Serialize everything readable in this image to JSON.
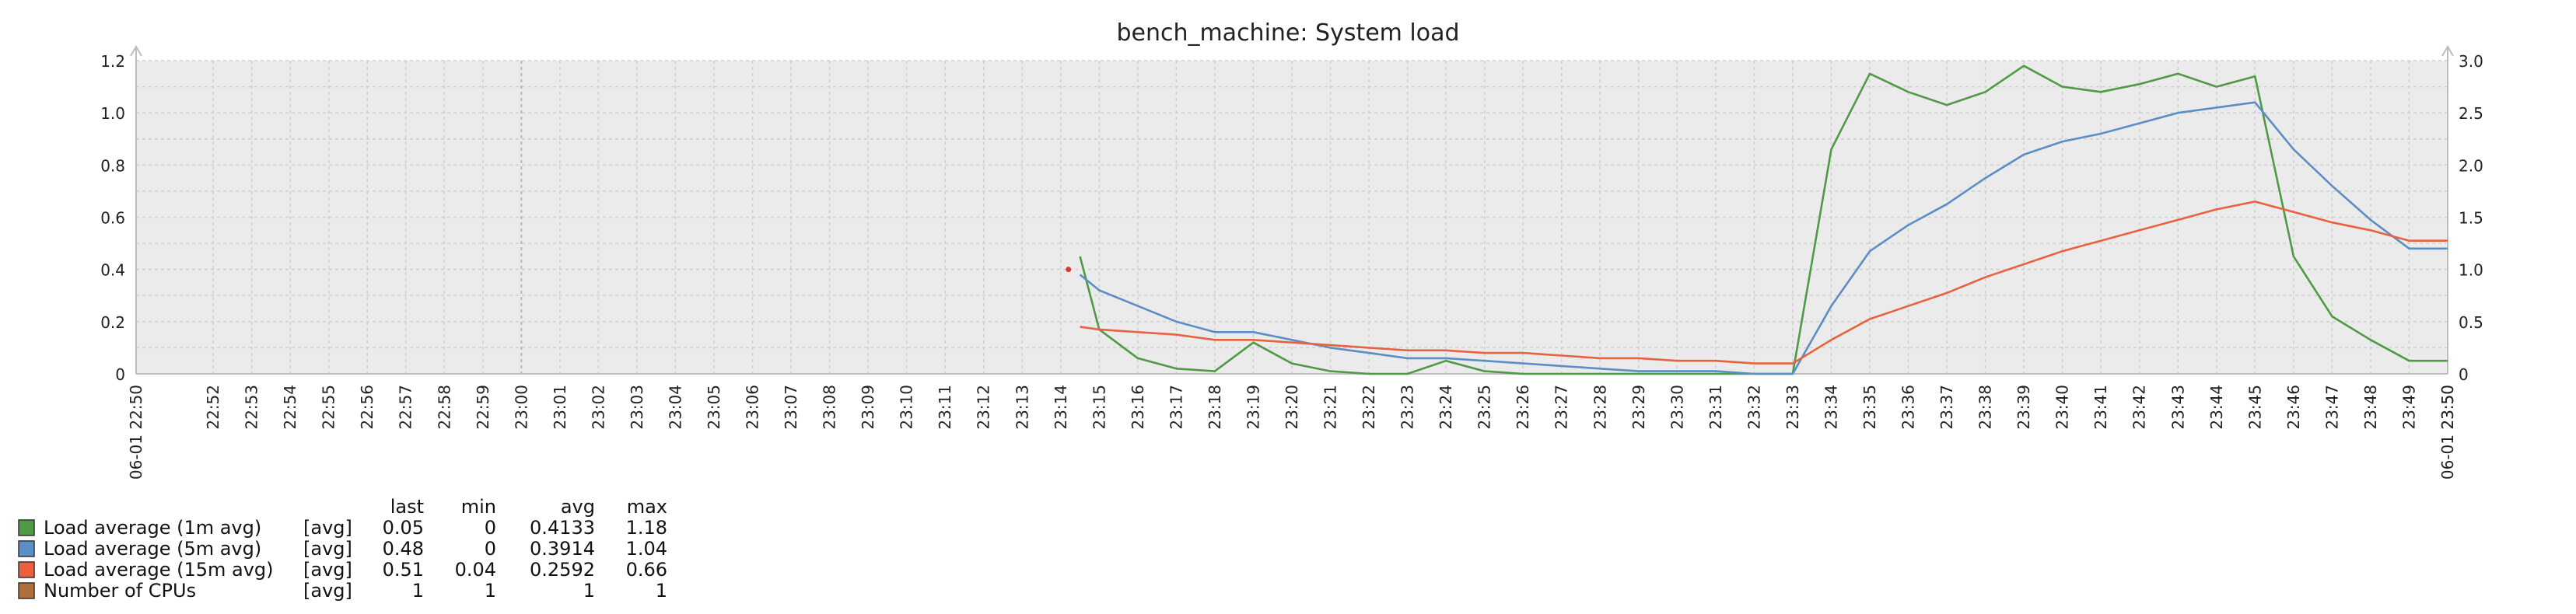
{
  "chart_data": {
    "type": "line",
    "title": "bench_machine: System load",
    "x_labels": [
      "22:52",
      "22:53",
      "22:54",
      "22:55",
      "22:56",
      "22:57",
      "22:58",
      "22:59",
      "23:00",
      "23:01",
      "23:02",
      "23:03",
      "23:04",
      "23:05",
      "23:06",
      "23:07",
      "23:08",
      "23:09",
      "23:10",
      "23:11",
      "23:12",
      "23:13",
      "23:14",
      "23:15",
      "23:16",
      "23:17",
      "23:18",
      "23:19",
      "23:20",
      "23:21",
      "23:22",
      "23:23",
      "23:24",
      "23:25",
      "23:26",
      "23:27",
      "23:28",
      "23:29",
      "23:30",
      "23:31",
      "23:32",
      "23:33",
      "23:34",
      "23:35",
      "23:36",
      "23:37",
      "23:38",
      "23:39",
      "23:40",
      "23:41",
      "23:42",
      "23:43",
      "23:44",
      "23:45",
      "23:46",
      "23:47",
      "23:48",
      "23:49",
      "23:50"
    ],
    "x_start_label": "06-01 22:50",
    "x_end_label": "06-01 23:50",
    "highlight_labels": [
      "23:00"
    ],
    "left_axis": {
      "min": 0,
      "max": 1.2,
      "ticks": [
        "0",
        "0.2",
        "0.4",
        "0.6",
        "0.8",
        "1.0",
        "1.2"
      ]
    },
    "right_axis": {
      "min": 0,
      "max": 3.0,
      "ticks": [
        "0",
        "0.5",
        "1.0",
        "1.5",
        "2.0",
        "2.5",
        "3.0"
      ]
    },
    "grid": true,
    "series": [
      {
        "name": "Load average (1m avg)",
        "color": "#4f9a44",
        "points": [
          [
            "23:14.5",
            0.45
          ],
          [
            "23:15",
            0.17
          ],
          [
            "23:16",
            0.06
          ],
          [
            "23:17",
            0.02
          ],
          [
            "23:18",
            0.01
          ],
          [
            "23:19",
            0.12
          ],
          [
            "23:20",
            0.04
          ],
          [
            "23:21",
            0.01
          ],
          [
            "23:22",
            0.0
          ],
          [
            "23:23",
            0.0
          ],
          [
            "23:24",
            0.05
          ],
          [
            "23:25",
            0.01
          ],
          [
            "23:26",
            0.0
          ],
          [
            "23:27",
            0.0
          ],
          [
            "23:28",
            0.0
          ],
          [
            "23:29",
            0.0
          ],
          [
            "23:30",
            0.0
          ],
          [
            "23:31",
            0.0
          ],
          [
            "23:32",
            0.0
          ],
          [
            "23:33",
            0.0
          ],
          [
            "23:34",
            0.86
          ],
          [
            "23:35",
            1.15
          ],
          [
            "23:36",
            1.08
          ],
          [
            "23:37",
            1.03
          ],
          [
            "23:38",
            1.08
          ],
          [
            "23:39",
            1.18
          ],
          [
            "23:40",
            1.1
          ],
          [
            "23:41",
            1.08
          ],
          [
            "23:42",
            1.11
          ],
          [
            "23:43",
            1.15
          ],
          [
            "23:44",
            1.1
          ],
          [
            "23:45",
            1.14
          ],
          [
            "23:46",
            0.45
          ],
          [
            "23:47",
            0.22
          ],
          [
            "23:48",
            0.13
          ],
          [
            "23:49",
            0.05
          ],
          [
            "23:50",
            0.05
          ]
        ]
      },
      {
        "name": "Load average (5m avg)",
        "color": "#5b8ec4",
        "points": [
          [
            "23:14.5",
            0.38
          ],
          [
            "23:15",
            0.32
          ],
          [
            "23:16",
            0.26
          ],
          [
            "23:17",
            0.2
          ],
          [
            "23:18",
            0.16
          ],
          [
            "23:19",
            0.16
          ],
          [
            "23:20",
            0.13
          ],
          [
            "23:21",
            0.1
          ],
          [
            "23:22",
            0.08
          ],
          [
            "23:23",
            0.06
          ],
          [
            "23:24",
            0.06
          ],
          [
            "23:25",
            0.05
          ],
          [
            "23:26",
            0.04
          ],
          [
            "23:27",
            0.03
          ],
          [
            "23:28",
            0.02
          ],
          [
            "23:29",
            0.01
          ],
          [
            "23:30",
            0.01
          ],
          [
            "23:31",
            0.01
          ],
          [
            "23:32",
            0.0
          ],
          [
            "23:33",
            0.0
          ],
          [
            "23:34",
            0.26
          ],
          [
            "23:35",
            0.47
          ],
          [
            "23:36",
            0.57
          ],
          [
            "23:37",
            0.65
          ],
          [
            "23:38",
            0.75
          ],
          [
            "23:39",
            0.84
          ],
          [
            "23:40",
            0.89
          ],
          [
            "23:41",
            0.92
          ],
          [
            "23:42",
            0.96
          ],
          [
            "23:43",
            1.0
          ],
          [
            "23:44",
            1.02
          ],
          [
            "23:45",
            1.04
          ],
          [
            "23:46",
            0.86
          ],
          [
            "23:47",
            0.72
          ],
          [
            "23:48",
            0.59
          ],
          [
            "23:49",
            0.48
          ],
          [
            "23:50",
            0.48
          ]
        ]
      },
      {
        "name": "Load average (15m avg)",
        "color": "#e8623e",
        "points": [
          [
            "23:14.5",
            0.18
          ],
          [
            "23:15",
            0.17
          ],
          [
            "23:16",
            0.16
          ],
          [
            "23:17",
            0.15
          ],
          [
            "23:18",
            0.13
          ],
          [
            "23:19",
            0.13
          ],
          [
            "23:20",
            0.12
          ],
          [
            "23:21",
            0.11
          ],
          [
            "23:22",
            0.1
          ],
          [
            "23:23",
            0.09
          ],
          [
            "23:24",
            0.09
          ],
          [
            "23:25",
            0.08
          ],
          [
            "23:26",
            0.08
          ],
          [
            "23:27",
            0.07
          ],
          [
            "23:28",
            0.06
          ],
          [
            "23:29",
            0.06
          ],
          [
            "23:30",
            0.05
          ],
          [
            "23:31",
            0.05
          ],
          [
            "23:32",
            0.04
          ],
          [
            "23:33",
            0.04
          ],
          [
            "23:34",
            0.13
          ],
          [
            "23:35",
            0.21
          ],
          [
            "23:36",
            0.26
          ],
          [
            "23:37",
            0.31
          ],
          [
            "23:38",
            0.37
          ],
          [
            "23:39",
            0.42
          ],
          [
            "23:40",
            0.47
          ],
          [
            "23:41",
            0.51
          ],
          [
            "23:42",
            0.55
          ],
          [
            "23:43",
            0.59
          ],
          [
            "23:44",
            0.63
          ],
          [
            "23:45",
            0.66
          ],
          [
            "23:46",
            0.62
          ],
          [
            "23:47",
            0.58
          ],
          [
            "23:48",
            0.55
          ],
          [
            "23:49",
            0.51
          ],
          [
            "23:50",
            0.51
          ]
        ]
      },
      {
        "name": "Number of CPUs",
        "color": "#b0703e",
        "points": []
      }
    ],
    "legend": {
      "headers": [
        "last",
        "min",
        "avg",
        "max"
      ],
      "rows": [
        {
          "name": "Load average (1m avg)",
          "color": "#4f9a44",
          "func": "[avg]",
          "last": "0.05",
          "min": "0",
          "avg": "0.4133",
          "max": "1.18"
        },
        {
          "name": "Load average (5m avg)",
          "color": "#5b8ec4",
          "func": "[avg]",
          "last": "0.48",
          "min": "0",
          "avg": "0.3914",
          "max": "1.04"
        },
        {
          "name": "Load average (15m avg)",
          "color": "#e8623e",
          "func": "[avg]",
          "last": "0.51",
          "min": "0.04",
          "avg": "0.2592",
          "max": "0.66"
        },
        {
          "name": "Number of CPUs",
          "color": "#b0703e",
          "func": "[avg]",
          "last": "1",
          "min": "1",
          "avg": "1",
          "max": "1"
        }
      ]
    }
  }
}
